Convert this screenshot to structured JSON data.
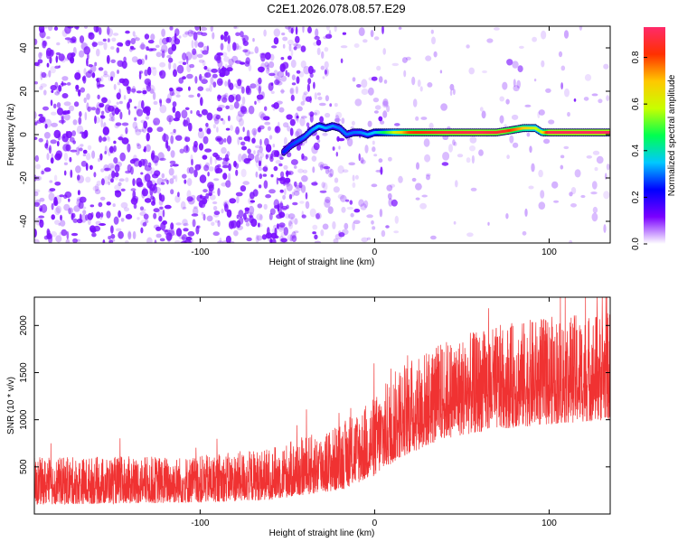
{
  "figure_title": "C2E1.2026.078.08.57.E29",
  "chart_data": [
    {
      "type": "heatmap",
      "title": "C2E1.2026.078.08.57.E29",
      "xlabel": "Height of straight line (km)",
      "ylabel": "Frequency (Hz)",
      "xlim": [
        -195,
        135
      ],
      "ylim": [
        -50,
        50
      ],
      "xticks": [
        -100,
        0,
        100
      ],
      "xtick_labels": [
        "-100",
        "0",
        "100"
      ],
      "yticks": [
        -40,
        -20,
        0,
        20,
        40
      ],
      "ytick_labels": [
        "-40",
        "-20",
        "0",
        "20",
        "40"
      ],
      "colorbar": {
        "label": "Normalized spectral amplitude",
        "range": [
          0.0,
          0.93
        ],
        "ticks": [
          0.0,
          0.2,
          0.4,
          0.6,
          0.8
        ],
        "tick_labels": [
          "0.0",
          "0.2",
          "0.4",
          "0.6",
          "0.8"
        ],
        "colors": [
          "#ffffff",
          "#7a00ff",
          "#0000ff",
          "#00c8ff",
          "#00ff50",
          "#c8ff00",
          "#ffc800",
          "#ff3000",
          "#ff2a6a"
        ]
      },
      "noise": {
        "x_start": -195,
        "x_end": 135,
        "freq_range": [
          -50,
          50
        ],
        "fade_start_km": -60,
        "fade_end_km": 15,
        "color": "#7a10ff"
      },
      "signal_track": {
        "points": [
          [
            -52,
            -8
          ],
          [
            -48,
            -5
          ],
          [
            -44,
            -3
          ],
          [
            -40,
            -1
          ],
          [
            -36,
            2
          ],
          [
            -32,
            4
          ],
          [
            -28,
            3
          ],
          [
            -24,
            4
          ],
          [
            -20,
            3
          ],
          [
            -16,
            0
          ],
          [
            -12,
            1
          ],
          [
            -8,
            1
          ],
          [
            -4,
            0
          ],
          [
            0,
            1
          ],
          [
            5,
            1
          ],
          [
            10,
            1
          ],
          [
            15,
            1
          ],
          [
            20,
            1
          ],
          [
            30,
            1
          ],
          [
            40,
            1
          ],
          [
            50,
            1
          ],
          [
            60,
            1
          ],
          [
            70,
            1
          ],
          [
            78,
            2
          ],
          [
            85,
            3
          ],
          [
            92,
            3
          ],
          [
            96,
            1
          ],
          [
            100,
            1
          ],
          [
            110,
            1
          ],
          [
            120,
            1
          ],
          [
            135,
            1
          ]
        ],
        "amplitude": [
          [
            -52,
            0.25
          ],
          [
            -40,
            0.3
          ],
          [
            -32,
            0.35
          ],
          [
            -20,
            0.3
          ],
          [
            -10,
            0.3
          ],
          [
            0,
            0.35
          ],
          [
            10,
            0.55
          ],
          [
            20,
            0.8
          ],
          [
            40,
            0.87
          ],
          [
            60,
            0.9
          ],
          [
            75,
            0.86
          ],
          [
            85,
            0.7
          ],
          [
            95,
            0.55
          ],
          [
            100,
            0.9
          ],
          [
            135,
            0.92
          ]
        ]
      }
    },
    {
      "type": "line",
      "xlabel": "Height of straight line (km)",
      "ylabel": "SNR (10 * v/v)",
      "xlim": [
        -195,
        135
      ],
      "ylim": [
        0,
        2300
      ],
      "xticks": [
        -100,
        0,
        100
      ],
      "xtick_labels": [
        "-100",
        "0",
        "100"
      ],
      "yticks": [
        500,
        1000,
        1500,
        2000
      ],
      "ytick_labels": [
        "500",
        "1000",
        "1500",
        "2000"
      ],
      "color": "#f03232",
      "trend": {
        "x": [
          -195,
          -100,
          -60,
          -20,
          0,
          15,
          40,
          70,
          100,
          135
        ],
        "baseline": [
          100,
          120,
          150,
          250,
          400,
          600,
          800,
          900,
          950,
          1000
        ],
        "spread": [
          500,
          500,
          550,
          700,
          850,
          1000,
          1050,
          1100,
          1150,
          1150
        ]
      }
    }
  ]
}
